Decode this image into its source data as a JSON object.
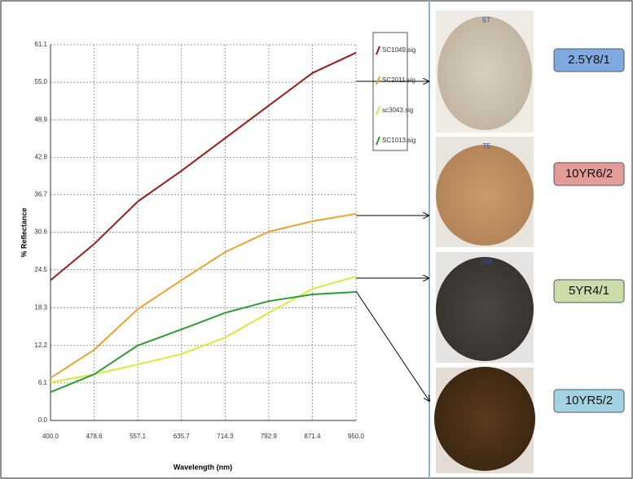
{
  "chart_data": {
    "type": "line",
    "x_label": "Wavelength (nm)",
    "y_label": "% Reflectance",
    "x": [
      400,
      478.6,
      557.1,
      635.7,
      714.3,
      792.9,
      871.4,
      950
    ],
    "series": [
      {
        "name": "SC1049.sig",
        "color": "#9b1c1c",
        "values": [
          22.8,
          28.7,
          35.6,
          40.6,
          45.9,
          51.2,
          56.5,
          59.8
        ]
      },
      {
        "name": "SC2011.sig",
        "color": "#f0a030",
        "values": [
          6.9,
          11.5,
          18.1,
          22.8,
          27.4,
          30.7,
          32.4,
          33.6
        ]
      },
      {
        "name": "sc3043.sig",
        "color": "#d4ec3c",
        "values": [
          6.2,
          7.5,
          9.1,
          10.8,
          13.5,
          17.5,
          21.4,
          23.4
        ]
      },
      {
        "name": "SC1013.sig",
        "color": "#2e9a35",
        "values": [
          4.6,
          7.5,
          12.2,
          14.8,
          17.5,
          19.4,
          20.5,
          20.9
        ]
      }
    ],
    "xlim": [
      400,
      950
    ],
    "xticks": [
      {
        "value": 400,
        "label": "400.0"
      },
      478.6,
      557.1,
      635.7,
      714.3,
      792.9,
      871.4,
      {
        "value": 950,
        "label": "950.0"
      }
    ],
    "ylim": [
      0,
      61.1
    ],
    "yticks": [
      {
        "value": 0,
        "label": "0.0"
      },
      6.1,
      12.2,
      18.3,
      24.5,
      30.6,
      36.7,
      42.8,
      48.9,
      {
        "value": 55,
        "label": "55.0"
      },
      61.1
    ],
    "grid": true
  },
  "samples": [
    {
      "tag": "67",
      "label": "2.5Y8/1"
    },
    {
      "tag": "75",
      "label": "10YR6/2"
    },
    {
      "tag": "184",
      "label": "5YR4/1"
    },
    {
      "tag": "",
      "label": "10YR5/2"
    }
  ]
}
